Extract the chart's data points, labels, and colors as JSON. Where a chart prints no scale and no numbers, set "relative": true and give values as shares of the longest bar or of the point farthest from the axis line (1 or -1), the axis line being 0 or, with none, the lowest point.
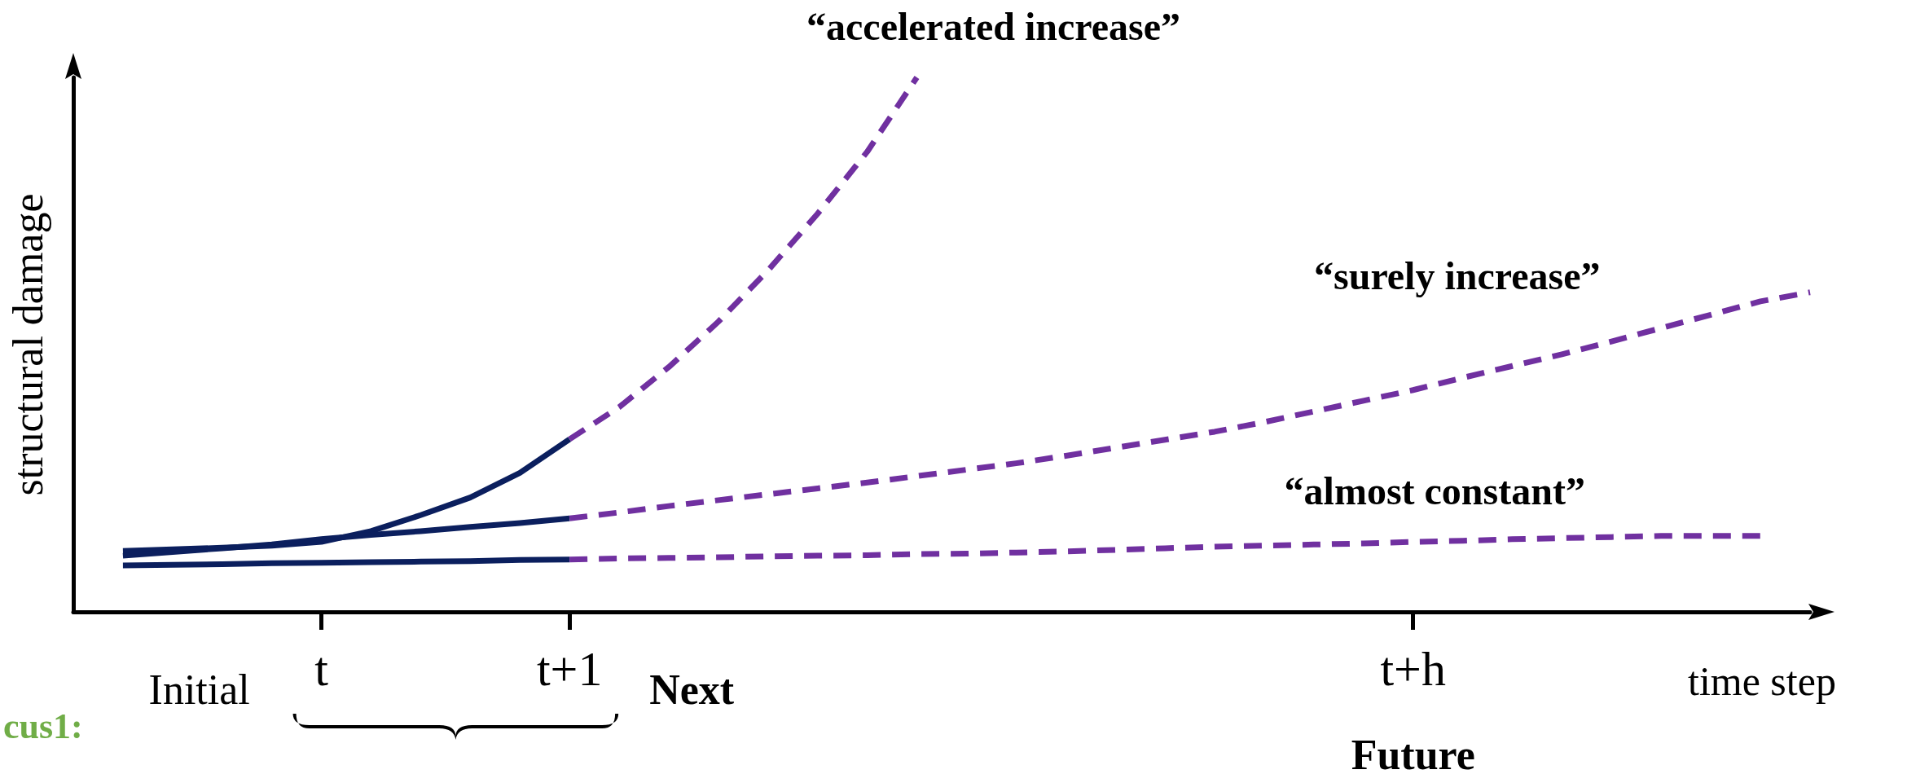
{
  "chart_data": {
    "type": "line",
    "relative": true,
    "xlabel": "time step",
    "ylabel": "structural damage",
    "categories": [
      null,
      null,
      null,
      null,
      null,
      "t",
      null,
      null,
      null,
      null,
      "t+1",
      null,
      null,
      null,
      null,
      null,
      null,
      null,
      null,
      null,
      null,
      null,
      null,
      null,
      null,
      null,
      null,
      "t+h",
      null,
      null,
      null,
      null,
      null,
      null,
      null,
      null
    ],
    "grid": false,
    "legend": false,
    "marker": "none",
    "annotations": [
      "Initial",
      "Next",
      "Future",
      "cus1:"
    ],
    "series": [
      {
        "color": "#0b1f5e",
        "line_style": "solid",
        "values": [
          null,
          0.114,
          0.117,
          0.12,
          0.124,
          0.131,
          0.151,
          0.181,
          0.214,
          0.26,
          0.323,
          null,
          null,
          null,
          null,
          null,
          null,
          null,
          null,
          null,
          null,
          null,
          null,
          null,
          null,
          null,
          null,
          null,
          null,
          null,
          null,
          null,
          null,
          null,
          null,
          null
        ]
      },
      {
        "name": "“accelerated increase”",
        "color": "#7030a0",
        "line_style": "dashed",
        "values": [
          null,
          null,
          null,
          null,
          null,
          null,
          null,
          null,
          null,
          null,
          0.323,
          0.383,
          0.458,
          0.543,
          0.639,
          0.745,
          0.861,
          1.0,
          null,
          null,
          null,
          null,
          null,
          null,
          null,
          null,
          null,
          null,
          null,
          null,
          null,
          null,
          null,
          null,
          null,
          null
        ]
      },
      {
        "color": "#0b1f5e",
        "line_style": "solid",
        "values": [
          null,
          0.105,
          0.112,
          0.119,
          0.126,
          0.136,
          0.144,
          0.151,
          0.159,
          0.166,
          0.175,
          null,
          null,
          null,
          null,
          null,
          null,
          null,
          null,
          null,
          null,
          null,
          null,
          null,
          null,
          null,
          null,
          null,
          null,
          null,
          null,
          null,
          null,
          null,
          null,
          null
        ]
      },
      {
        "name": "“surely increase”",
        "color": "#7030a0",
        "line_style": "dashed",
        "values": [
          null,
          null,
          null,
          null,
          null,
          null,
          null,
          null,
          null,
          null,
          0.175,
          0.186,
          0.198,
          0.209,
          0.22,
          0.231,
          0.242,
          0.254,
          0.266,
          0.278,
          0.292,
          0.307,
          0.322,
          0.337,
          0.355,
          0.375,
          0.395,
          0.415,
          0.438,
          0.46,
          0.482,
          0.506,
          0.531,
          0.556,
          0.581,
          0.598
        ]
      },
      {
        "color": "#0b1f5e",
        "line_style": "solid",
        "values": [
          null,
          0.087,
          0.088,
          0.089,
          0.091,
          0.092,
          0.093,
          0.094,
          0.095,
          0.097,
          0.098,
          null,
          null,
          null,
          null,
          null,
          null,
          null,
          null,
          null,
          null,
          null,
          null,
          null,
          null,
          null,
          null,
          null,
          null,
          null,
          null,
          null,
          null,
          null,
          null,
          null
        ]
      },
      {
        "name": "“almost constant”",
        "color": "#7030a0",
        "line_style": "dashed",
        "values": [
          null,
          null,
          null,
          null,
          null,
          null,
          null,
          null,
          null,
          null,
          0.098,
          0.1,
          0.101,
          0.102,
          0.104,
          0.105,
          0.106,
          0.108,
          0.109,
          0.111,
          0.113,
          0.116,
          0.119,
          0.122,
          0.124,
          0.126,
          0.128,
          0.131,
          0.133,
          0.136,
          0.138,
          0.14,
          0.142,
          0.142,
          0.142,
          null
        ]
      }
    ]
  }
}
